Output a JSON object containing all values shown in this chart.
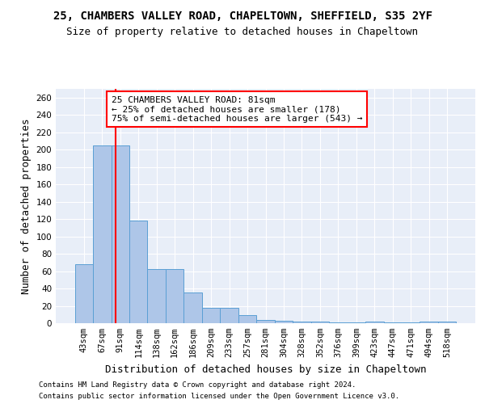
{
  "title_line1": "25, CHAMBERS VALLEY ROAD, CHAPELTOWN, SHEFFIELD, S35 2YF",
  "title_line2": "Size of property relative to detached houses in Chapeltown",
  "xlabel": "Distribution of detached houses by size in Chapeltown",
  "ylabel": "Number of detached properties",
  "categories": [
    "43sqm",
    "67sqm",
    "91sqm",
    "114sqm",
    "138sqm",
    "162sqm",
    "186sqm",
    "209sqm",
    "233sqm",
    "257sqm",
    "281sqm",
    "304sqm",
    "328sqm",
    "352sqm",
    "376sqm",
    "399sqm",
    "423sqm",
    "447sqm",
    "471sqm",
    "494sqm",
    "518sqm"
  ],
  "values": [
    68,
    205,
    205,
    118,
    62,
    62,
    35,
    18,
    18,
    9,
    4,
    3,
    2,
    2,
    1,
    1,
    2,
    1,
    1,
    2,
    2
  ],
  "bar_color": "#aec6e8",
  "bar_edge_color": "#5a9fd4",
  "bar_width": 1.0,
  "red_line_x": 1.75,
  "annotation_text": "25 CHAMBERS VALLEY ROAD: 81sqm\n← 25% of detached houses are smaller (178)\n75% of semi-detached houses are larger (543) →",
  "annotation_box_color": "white",
  "annotation_box_edge_color": "red",
  "ylim": [
    0,
    270
  ],
  "yticks": [
    0,
    20,
    40,
    60,
    80,
    100,
    120,
    140,
    160,
    180,
    200,
    220,
    240,
    260
  ],
  "background_color": "#e8eef8",
  "grid_color": "white",
  "footer_line1": "Contains HM Land Registry data © Crown copyright and database right 2024.",
  "footer_line2": "Contains public sector information licensed under the Open Government Licence v3.0.",
  "title_fontsize": 10,
  "subtitle_fontsize": 9,
  "axis_label_fontsize": 9,
  "tick_fontsize": 7.5,
  "annotation_fontsize": 8,
  "footer_fontsize": 6.5
}
